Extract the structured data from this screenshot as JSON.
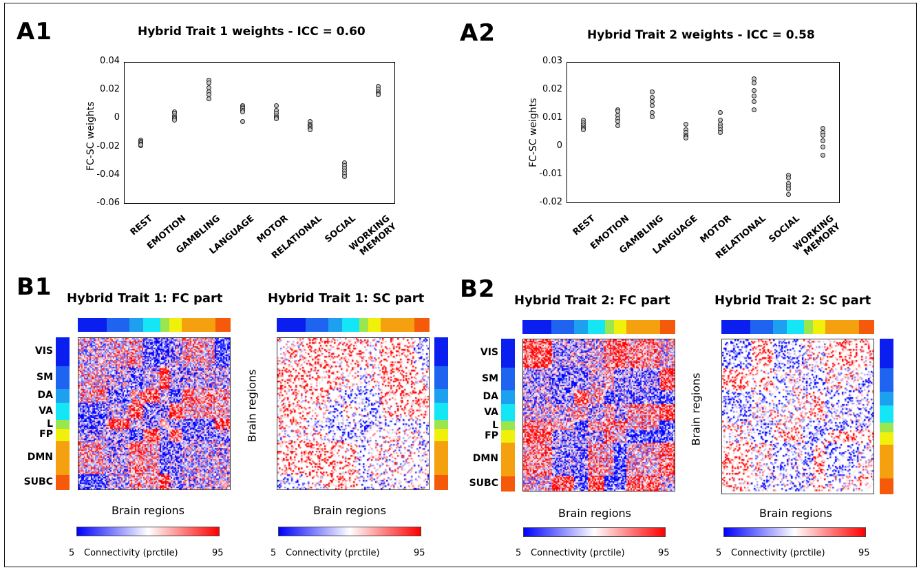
{
  "scatter_panels": [
    {
      "label": "A1",
      "title": "Hybrid Trait 1 weights - ICC = 0.60",
      "ylabel": "FC-SC weights",
      "yticks": [
        "0.04",
        "0.02",
        "0",
        "-0.02",
        "-0.04",
        "-0.06"
      ]
    },
    {
      "label": "A2",
      "title": "Hybrid Trait 2 weights - ICC = 0.58",
      "ylabel": "FC-SC weights",
      "yticks": [
        "0.03",
        "0.02",
        "0.01",
        "0",
        "-0.01",
        "-0.02"
      ]
    }
  ],
  "categories": [
    "REST",
    "EMOTION",
    "GAMBLING",
    "LANGUAGE",
    "MOTOR",
    "RELATIONAL",
    "SOCIAL",
    "WORKING\nMEMORY"
  ],
  "matrix_panels": [
    {
      "label": "B1"
    },
    {
      "label": "B2"
    }
  ],
  "matrices": [
    {
      "title": "Hybrid Trait 1: FC part",
      "xlabel": "Brain regions",
      "ylabel": ""
    },
    {
      "title": "Hybrid Trait 1: SC part",
      "xlabel": "Brain regions",
      "ylabel": "Brain regions"
    },
    {
      "title": "Hybrid Trait 2: FC part",
      "xlabel": "Brain regions",
      "ylabel": ""
    },
    {
      "title": "Hybrid Trait 2: SC part",
      "xlabel": "Brain regions",
      "ylabel": "Brain regions"
    }
  ],
  "networks": [
    "VIS",
    "SM",
    "DA",
    "VA",
    "L",
    "FP",
    "DMN",
    "SUBC"
  ],
  "network_colors": [
    "#0a1ef0",
    "#1e64f0",
    "#1ea0f0",
    "#14e6f5",
    "#9be650",
    "#f0f00a",
    "#f5a00f",
    "#f55a0a"
  ],
  "network_fractions": [
    0.19,
    0.15,
    0.09,
    0.11,
    0.06,
    0.08,
    0.22,
    0.1
  ],
  "colorbar": {
    "min": "5",
    "max": "95",
    "label": "Connectivity (prctile)",
    "colors": [
      "#0000ff",
      "#ffffff",
      "#ff0000"
    ]
  },
  "chart_data": [
    {
      "type": "scatter",
      "title": "Hybrid Trait 1 weights - ICC = 0.60",
      "ylabel": "FC-SC weights",
      "ylim": [
        -0.06,
        0.04
      ],
      "categories": [
        "REST",
        "EMOTION",
        "GAMBLING",
        "LANGUAGE",
        "MOTOR",
        "RELATIONAL",
        "SOCIAL",
        "WORKING MEMORY"
      ],
      "values": [
        [
          -0.015,
          -0.016,
          -0.017,
          -0.018,
          -0.019,
          -0.0185
        ],
        [
          0.005,
          0.004,
          0.002,
          0.001,
          0.0,
          -0.001
        ],
        [
          0.027,
          0.025,
          0.022,
          0.019,
          0.017,
          0.014
        ],
        [
          0.009,
          0.008,
          0.007,
          0.006,
          0.005,
          -0.002
        ],
        [
          0.009,
          0.006,
          0.004,
          0.002,
          0.001,
          0.0
        ],
        [
          -0.002,
          -0.004,
          -0.005,
          -0.006,
          -0.007,
          -0.008
        ],
        [
          -0.031,
          -0.033,
          -0.035,
          -0.037,
          -0.039,
          -0.041
        ],
        [
          0.023,
          0.021,
          0.019,
          0.018,
          0.017
        ]
      ]
    },
    {
      "type": "scatter",
      "title": "Hybrid Trait 2 weights - ICC = 0.58",
      "ylabel": "FC-SC weights",
      "ylim": [
        -0.02,
        0.03
      ],
      "categories": [
        "REST",
        "EMOTION",
        "GAMBLING",
        "LANGUAGE",
        "MOTOR",
        "RELATIONAL",
        "SOCIAL",
        "WORKING MEMORY"
      ],
      "values": [
        [
          0.0095,
          0.0085,
          0.0078,
          0.007,
          0.0065,
          0.006
        ],
        [
          0.013,
          0.0125,
          0.011,
          0.01,
          0.009,
          0.0075
        ],
        [
          0.0195,
          0.0175,
          0.016,
          0.0145,
          0.012,
          0.0105
        ],
        [
          0.008,
          0.006,
          0.005,
          0.004,
          0.0035,
          0.003
        ],
        [
          0.012,
          0.0095,
          0.008,
          0.007,
          0.006,
          0.005
        ],
        [
          0.024,
          0.0225,
          0.02,
          0.018,
          0.016,
          0.013
        ],
        [
          -0.01,
          -0.011,
          -0.013,
          -0.014,
          -0.015,
          -0.017
        ],
        [
          0.0065,
          0.005,
          0.004,
          0.002,
          0.0,
          -0.003
        ]
      ]
    }
  ]
}
